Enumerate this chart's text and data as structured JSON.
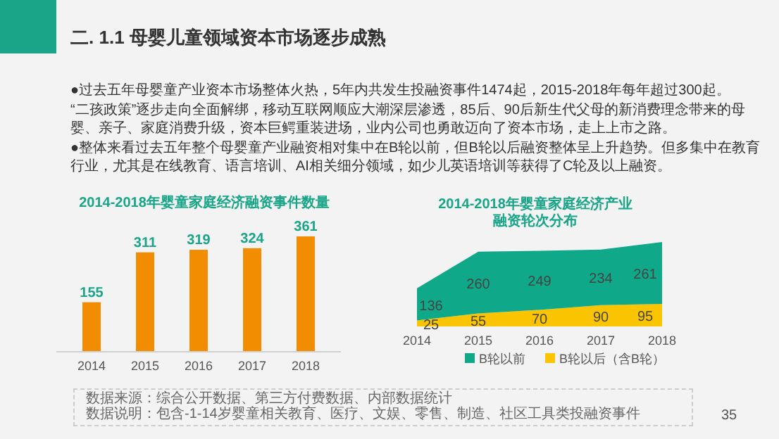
{
  "chart_data": [
    {
      "type": "other",
      "title": "二. 1.1 母婴儿童领域资本市场逐步成熟",
      "annotations": [
        "●过去五年母婴童产业资本市场整体火热，5年内共发生投融资事件1474起，2015-2018年每年超过300起。",
        "“二孩政策”逐步走向全面解绑，移动互联网顺应大潮深层渗透，85后、90后新生代父母的新消费理念带来的母婴、亲子、家庭消费升级，资本巨鳄重装进场，业内公司也勇敢迈向了资本市场，走上上市之路。",
        "●整体来看过去五年整个母婴童产业融资相对集中在B轮以前，但B轮以后融资整体呈上升趋势。但多集中在教育行业，尤其是在线教育、语言培训、AI相关细分领域，如少儿英语培训等获得了C轮及以上融资。",
        "数据来源：综合公开数据、第三方付费数据、内部数据统计",
        "数据说明：包含-1-14岁婴童相关教育、医疗、文娱、零售、制造、社区工具类投融资事件",
        "35"
      ]
    },
    {
      "type": "bar",
      "title": "2014-2018年婴童家庭经济融资事件数量",
      "categories": [
        "2014",
        "2015",
        "2016",
        "2017",
        "2018"
      ],
      "values": [
        155,
        311,
        319,
        324,
        361
      ],
      "color": "#f28c00",
      "data_labels": true,
      "legend": false
    },
    {
      "type": "area",
      "title": "2014-2018年婴童家庭经济产业融资轮次分布",
      "categories": [
        "2014",
        "2015",
        "2016",
        "2017",
        "2018"
      ],
      "stacked": true,
      "data_labels": true,
      "legend": "bottom",
      "series": [
        {
          "name": "B轮以后（含B轮）",
          "color": "#fbc400",
          "values": [
            25,
            55,
            70,
            90,
            95
          ]
        },
        {
          "name": "B轮以前",
          "color": "#0fa98a",
          "values": [
            136,
            260,
            249,
            234,
            261
          ]
        }
      ]
    }
  ]
}
